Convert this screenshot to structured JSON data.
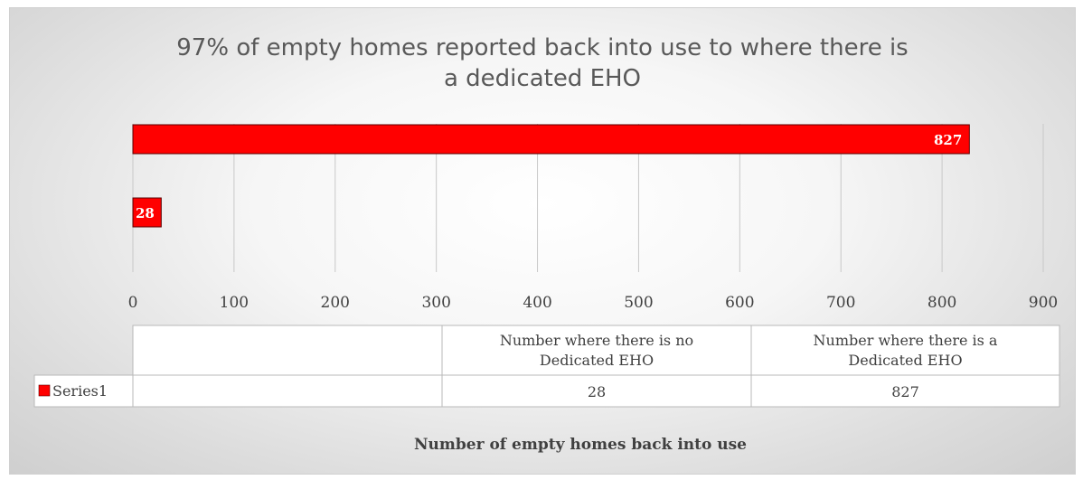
{
  "chart_data": {
    "type": "bar",
    "orientation": "horizontal",
    "title": "97% of empty homes reported back into use to where there is a  dedicated EHO",
    "title_lines": [
      "97% of empty homes reported back into use to where there is",
      "a  dedicated EHO"
    ],
    "xlabel": "Number of empty homes back into use",
    "ylabel": "",
    "categories": [
      "Number where there is no Dedicated EHO",
      "Number where there is a Dedicated EHO"
    ],
    "category_label_lines": [
      [
        "Number where there is no",
        "Dedicated EHO"
      ],
      [
        "Number where there is a",
        "Dedicated EHO"
      ]
    ],
    "series": [
      {
        "name": "Series1",
        "values": [
          28,
          827
        ],
        "color": "#ff0000"
      }
    ],
    "xlim": [
      0,
      900
    ],
    "ticks": [
      0,
      100,
      200,
      300,
      400,
      500,
      600,
      700,
      800,
      900
    ],
    "grid": true,
    "legend": "data-table",
    "data_table": true,
    "colors": {
      "bar": "#ff0000",
      "bar_border": "#5a0000",
      "grid": "#c8c8c8",
      "text": "#404040"
    }
  }
}
